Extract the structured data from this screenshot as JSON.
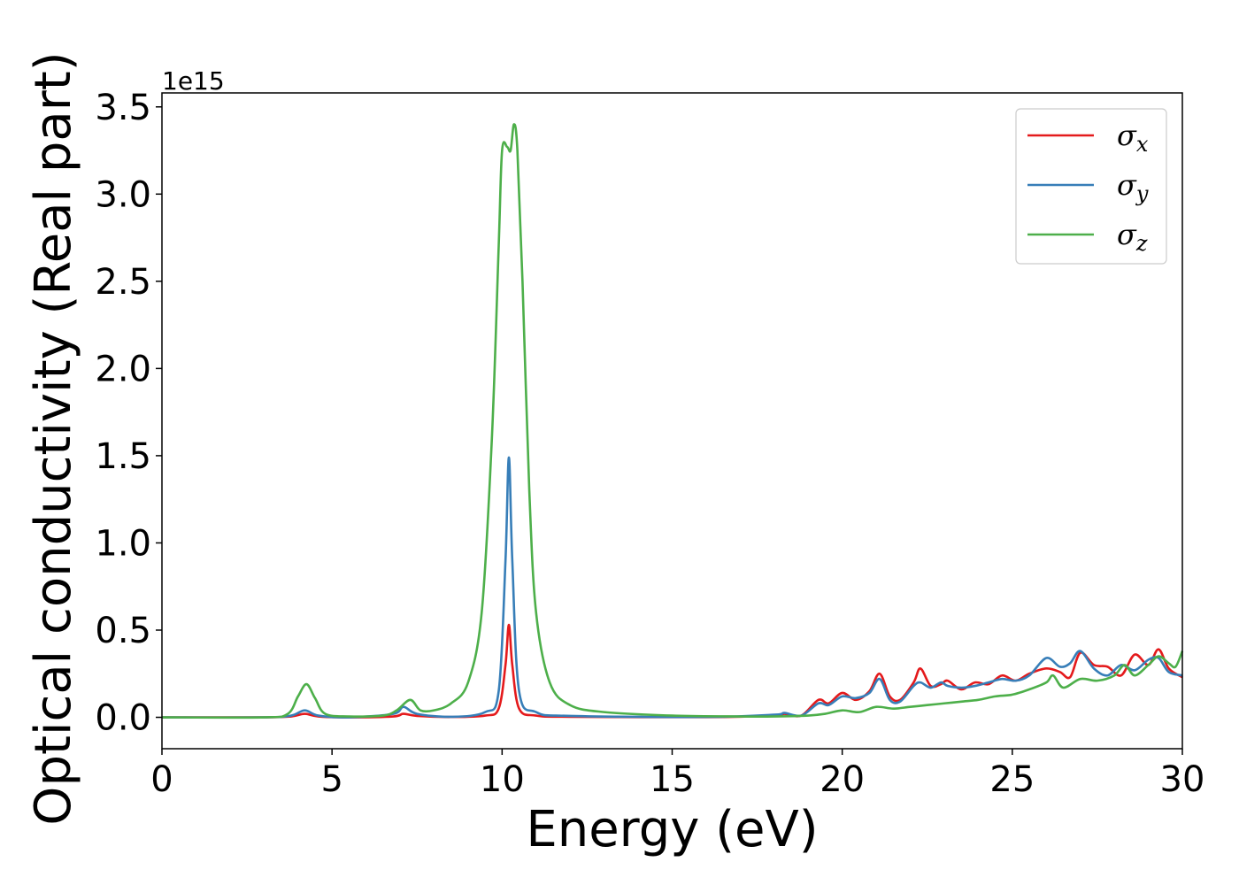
{
  "chart_data": {
    "type": "line",
    "xlabel": "Energy (eV)",
    "ylabel": "Optical conductivity (Real part)",
    "y_offset_label": "1e15",
    "y_scale": 1000000000000000.0,
    "xlim": [
      0,
      30
    ],
    "ylim": [
      -0.18,
      3.58
    ],
    "x_ticks": [
      0,
      5,
      10,
      15,
      20,
      25,
      30
    ],
    "x_tick_labels": [
      "0",
      "5",
      "10",
      "15",
      "20",
      "25",
      "30"
    ],
    "y_ticks": [
      0.0,
      0.5,
      1.0,
      1.5,
      2.0,
      2.5,
      3.0,
      3.5
    ],
    "y_tick_labels": [
      "0.0",
      "0.5",
      "1.0",
      "1.5",
      "2.0",
      "2.5",
      "3.0",
      "3.5"
    ],
    "grid": false,
    "legend_position": "top-right",
    "series": [
      {
        "name": "σx",
        "symbol": "σ",
        "subscript": "x",
        "color": "#e41a1c",
        "points": [
          [
            0,
            0
          ],
          [
            3,
            0
          ],
          [
            3.8,
            0.005
          ],
          [
            4.2,
            0.02
          ],
          [
            4.6,
            0.005
          ],
          [
            5.5,
            0
          ],
          [
            6.8,
            0.005
          ],
          [
            7.1,
            0.02
          ],
          [
            7.5,
            0.008
          ],
          [
            8.5,
            0.002
          ],
          [
            9.5,
            0.01
          ],
          [
            9.9,
            0.05
          ],
          [
            10.1,
            0.3
          ],
          [
            10.2,
            0.53
          ],
          [
            10.3,
            0.3
          ],
          [
            10.5,
            0.05
          ],
          [
            11,
            0.01
          ],
          [
            12,
            0.003
          ],
          [
            16,
            0.001
          ],
          [
            18,
            0.01
          ],
          [
            18.3,
            0.02
          ],
          [
            18.8,
            0.01
          ],
          [
            19.3,
            0.1
          ],
          [
            19.6,
            0.08
          ],
          [
            20,
            0.14
          ],
          [
            20.4,
            0.1
          ],
          [
            20.8,
            0.15
          ],
          [
            21.1,
            0.25
          ],
          [
            21.4,
            0.12
          ],
          [
            21.7,
            0.1
          ],
          [
            22.1,
            0.2
          ],
          [
            22.3,
            0.28
          ],
          [
            22.6,
            0.18
          ],
          [
            22.9,
            0.19
          ],
          [
            23.1,
            0.21
          ],
          [
            23.5,
            0.16
          ],
          [
            23.9,
            0.2
          ],
          [
            24.3,
            0.19
          ],
          [
            24.7,
            0.24
          ],
          [
            25.1,
            0.21
          ],
          [
            25.5,
            0.25
          ],
          [
            26,
            0.28
          ],
          [
            26.4,
            0.26
          ],
          [
            26.7,
            0.23
          ],
          [
            27,
            0.37
          ],
          [
            27.4,
            0.3
          ],
          [
            27.8,
            0.29
          ],
          [
            28.2,
            0.24
          ],
          [
            28.6,
            0.36
          ],
          [
            29,
            0.3
          ],
          [
            29.3,
            0.39
          ],
          [
            29.6,
            0.28
          ],
          [
            30,
            0.23
          ]
        ]
      },
      {
        "name": "σy",
        "symbol": "σ",
        "subscript": "y",
        "color": "#377eb8",
        "points": [
          [
            0,
            0
          ],
          [
            3,
            0
          ],
          [
            3.8,
            0.01
          ],
          [
            4.2,
            0.04
          ],
          [
            4.6,
            0.01
          ],
          [
            5.5,
            0
          ],
          [
            6.8,
            0.02
          ],
          [
            7.1,
            0.06
          ],
          [
            7.5,
            0.02
          ],
          [
            8.5,
            0.003
          ],
          [
            9.5,
            0.03
          ],
          [
            9.9,
            0.15
          ],
          [
            10.1,
            0.9
          ],
          [
            10.2,
            1.49
          ],
          [
            10.3,
            0.9
          ],
          [
            10.5,
            0.15
          ],
          [
            11,
            0.03
          ],
          [
            12,
            0.008
          ],
          [
            16,
            0.002
          ],
          [
            18,
            0.015
          ],
          [
            18.3,
            0.025
          ],
          [
            18.8,
            0.01
          ],
          [
            19.3,
            0.08
          ],
          [
            19.6,
            0.07
          ],
          [
            20,
            0.12
          ],
          [
            20.4,
            0.11
          ],
          [
            20.8,
            0.14
          ],
          [
            21.1,
            0.22
          ],
          [
            21.4,
            0.1
          ],
          [
            21.7,
            0.09
          ],
          [
            22.1,
            0.18
          ],
          [
            22.3,
            0.2
          ],
          [
            22.6,
            0.17
          ],
          [
            22.9,
            0.2
          ],
          [
            23.1,
            0.18
          ],
          [
            23.5,
            0.17
          ],
          [
            23.9,
            0.18
          ],
          [
            24.3,
            0.2
          ],
          [
            24.7,
            0.22
          ],
          [
            25.1,
            0.21
          ],
          [
            25.5,
            0.24
          ],
          [
            26,
            0.34
          ],
          [
            26.4,
            0.29
          ],
          [
            26.7,
            0.31
          ],
          [
            27,
            0.38
          ],
          [
            27.4,
            0.28
          ],
          [
            27.8,
            0.24
          ],
          [
            28.2,
            0.3
          ],
          [
            28.6,
            0.27
          ],
          [
            29,
            0.33
          ],
          [
            29.3,
            0.34
          ],
          [
            29.6,
            0.26
          ],
          [
            30,
            0.24
          ]
        ]
      },
      {
        "name": "σz",
        "symbol": "σ",
        "subscript": "z",
        "color": "#4daf4a",
        "points": [
          [
            0,
            0
          ],
          [
            3,
            0
          ],
          [
            3.7,
            0.02
          ],
          [
            4,
            0.12
          ],
          [
            4.25,
            0.19
          ],
          [
            4.5,
            0.11
          ],
          [
            4.8,
            0.02
          ],
          [
            5.5,
            0.005
          ],
          [
            6.5,
            0.01
          ],
          [
            6.9,
            0.04
          ],
          [
            7.3,
            0.1
          ],
          [
            7.6,
            0.04
          ],
          [
            8,
            0.04
          ],
          [
            8.5,
            0.08
          ],
          [
            9,
            0.2
          ],
          [
            9.4,
            0.6
          ],
          [
            9.7,
            1.6
          ],
          [
            9.9,
            2.7
          ],
          [
            10.0,
            3.25
          ],
          [
            10.15,
            3.27
          ],
          [
            10.25,
            3.25
          ],
          [
            10.35,
            3.4
          ],
          [
            10.45,
            3.25
          ],
          [
            10.6,
            2.5
          ],
          [
            10.8,
            1.3
          ],
          [
            11,
            0.6
          ],
          [
            11.4,
            0.2
          ],
          [
            12,
            0.07
          ],
          [
            13,
            0.03
          ],
          [
            15,
            0.01
          ],
          [
            17,
            0.005
          ],
          [
            18,
            0.005
          ],
          [
            19,
            0.01
          ],
          [
            19.5,
            0.02
          ],
          [
            20,
            0.04
          ],
          [
            20.5,
            0.03
          ],
          [
            21,
            0.06
          ],
          [
            21.5,
            0.05
          ],
          [
            22,
            0.06
          ],
          [
            22.5,
            0.07
          ],
          [
            23,
            0.08
          ],
          [
            23.5,
            0.09
          ],
          [
            24,
            0.1
          ],
          [
            24.5,
            0.12
          ],
          [
            25,
            0.13
          ],
          [
            25.5,
            0.16
          ],
          [
            26,
            0.2
          ],
          [
            26.2,
            0.24
          ],
          [
            26.5,
            0.17
          ],
          [
            27,
            0.22
          ],
          [
            27.5,
            0.21
          ],
          [
            28,
            0.24
          ],
          [
            28.3,
            0.3
          ],
          [
            28.6,
            0.24
          ],
          [
            29,
            0.3
          ],
          [
            29.3,
            0.35
          ],
          [
            29.6,
            0.31
          ],
          [
            29.8,
            0.29
          ],
          [
            30,
            0.38
          ]
        ]
      }
    ]
  }
}
